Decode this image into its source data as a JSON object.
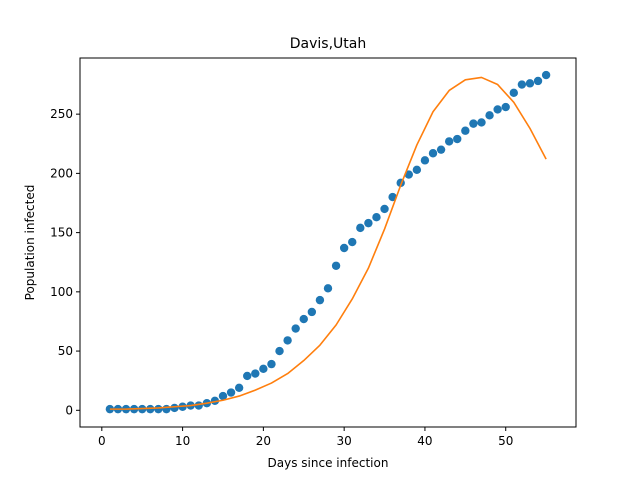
{
  "chart_data": {
    "type": "scatter",
    "title": "Davis,Utah",
    "xlabel": "Days since infection",
    "ylabel": "Population infected",
    "xlim": [
      -2.7,
      58.7
    ],
    "ylim": [
      -14.1,
      297.4
    ],
    "xticks": [
      0,
      10,
      20,
      30,
      40,
      50
    ],
    "yticks": [
      0,
      50,
      100,
      150,
      200,
      250
    ],
    "grid": false,
    "colors": {
      "scatter": "#1f77b4",
      "curve": "#ff7f0e"
    },
    "series": [
      {
        "type": "scatter",
        "x": [
          1,
          2,
          3,
          4,
          5,
          6,
          7,
          8,
          9,
          10,
          11,
          12,
          13,
          14,
          15,
          16,
          17,
          18,
          19,
          20,
          21,
          22,
          23,
          24,
          25,
          26,
          27,
          28,
          29,
          30,
          31,
          32,
          33,
          34,
          35,
          36,
          37,
          38,
          39,
          40,
          41,
          42,
          43,
          44,
          45,
          46,
          47,
          48,
          49,
          50,
          51,
          52,
          53,
          54,
          55
        ],
        "y": [
          1,
          1,
          1,
          1,
          1,
          1,
          1,
          1,
          2,
          3,
          4,
          4,
          6,
          8,
          12,
          15,
          19,
          29,
          31,
          35,
          39,
          50,
          59,
          69,
          77,
          83,
          93,
          103,
          122,
          137,
          142,
          154,
          158,
          163,
          170,
          180,
          192,
          199,
          203,
          211,
          217,
          220,
          227,
          229,
          236,
          242,
          243,
          249,
          254,
          256,
          268,
          275,
          276,
          278,
          283
        ]
      },
      {
        "type": "line",
        "x": [
          1,
          3,
          5,
          7,
          9,
          11,
          13,
          15,
          17,
          19,
          21,
          23,
          25,
          27,
          29,
          31,
          33,
          35,
          37,
          39,
          41,
          43,
          45,
          47,
          49,
          51,
          53,
          55
        ],
        "y": [
          1,
          1,
          1.5,
          2,
          3,
          4,
          6,
          8.5,
          12,
          17,
          23,
          31,
          42,
          55,
          72,
          94,
          120,
          153,
          190,
          224,
          252,
          270,
          279,
          281,
          275,
          260,
          238,
          212
        ]
      }
    ]
  }
}
